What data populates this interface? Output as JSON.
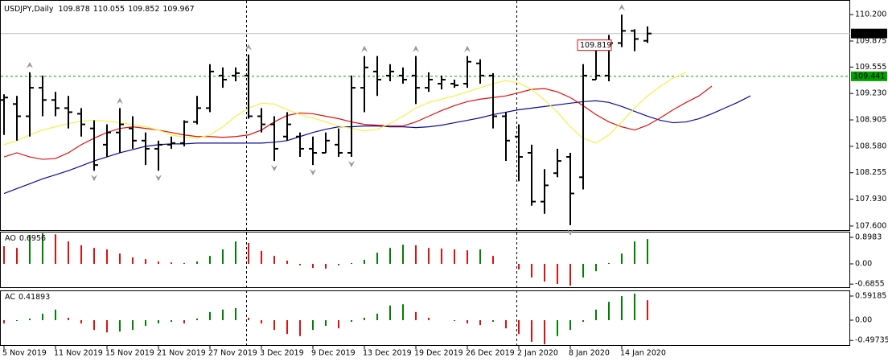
{
  "chart_data": {
    "type": "ohlc",
    "title": "USDJPY,Daily",
    "categories": [
      "5 Nov 2019",
      null,
      null,
      null,
      "11 Nov 2019",
      null,
      null,
      null,
      "15 Nov 2019",
      null,
      null,
      null,
      "21 Nov 2019",
      null,
      null,
      null,
      "27 Nov 2019",
      null,
      null,
      null,
      "3 Dec 2019",
      null,
      null,
      null,
      "9 Dec 2019",
      null,
      null,
      null,
      "13 Dec 2019",
      null,
      null,
      null,
      "19 Dec 2019",
      null,
      null,
      null,
      "26 Dec 2019",
      null,
      null,
      null,
      "2 Jan 2020",
      null,
      null,
      null,
      "8 Jan 2020",
      null,
      null,
      null,
      "14 Jan 2020",
      null,
      null,
      null,
      null,
      null,
      null,
      null,
      null,
      null,
      null
    ],
    "bars": [
      [
        109.15,
        109.22,
        108.72,
        109.18
      ],
      [
        109.1,
        109.2,
        108.65,
        108.95
      ],
      [
        108.95,
        109.49,
        108.7,
        109.3
      ],
      [
        109.3,
        109.45,
        108.95,
        109.15
      ],
      [
        109.15,
        109.25,
        108.95,
        109.05
      ],
      [
        109.05,
        109.2,
        108.8,
        109.0
      ],
      [
        108.98,
        109.05,
        108.7,
        108.85
      ],
      [
        108.8,
        108.9,
        108.28,
        108.35
      ],
      [
        108.6,
        108.85,
        108.45,
        108.75
      ],
      [
        108.75,
        109.05,
        108.5,
        108.85
      ],
      [
        108.8,
        108.95,
        108.55,
        108.65
      ],
      [
        108.65,
        108.75,
        108.35,
        108.55
      ],
      [
        108.55,
        108.65,
        108.28,
        108.6
      ],
      [
        108.6,
        108.7,
        108.55,
        108.62
      ],
      [
        108.62,
        108.9,
        108.58,
        108.88
      ],
      [
        108.88,
        109.2,
        108.85,
        109.05
      ],
      [
        109.05,
        109.59,
        109.0,
        109.5
      ],
      [
        109.45,
        109.55,
        109.3,
        109.4
      ],
      [
        109.45,
        109.55,
        109.38,
        109.48
      ],
      [
        109.45,
        109.71,
        108.92,
        108.95
      ],
      [
        108.95,
        109.05,
        108.75,
        108.85
      ],
      [
        108.85,
        108.95,
        108.4,
        108.55
      ],
      [
        108.7,
        109.0,
        108.65,
        108.85
      ],
      [
        108.7,
        108.75,
        108.45,
        108.55
      ],
      [
        108.55,
        108.7,
        108.35,
        108.5
      ],
      [
        108.5,
        108.75,
        108.5,
        108.65
      ],
      [
        108.6,
        108.8,
        108.45,
        108.5
      ],
      [
        108.5,
        109.45,
        108.45,
        109.3
      ],
      [
        109.3,
        109.69,
        109.0,
        109.55
      ],
      [
        109.5,
        109.69,
        109.2,
        109.4
      ],
      [
        109.45,
        109.59,
        109.38,
        109.5
      ],
      [
        109.45,
        109.55,
        109.35,
        109.4
      ],
      [
        109.45,
        109.69,
        109.1,
        109.3
      ],
      [
        109.3,
        109.49,
        109.25,
        109.4
      ],
      [
        109.35,
        109.45,
        109.28,
        109.4
      ],
      [
        109.35,
        109.4,
        109.3,
        109.33
      ],
      [
        109.35,
        109.69,
        109.3,
        109.62
      ],
      [
        109.6,
        109.65,
        109.35,
        109.45
      ],
      [
        109.45,
        109.48,
        108.8,
        108.95
      ],
      [
        108.95,
        109.0,
        108.4,
        108.65
      ],
      [
        108.7,
        108.85,
        108.15,
        108.45
      ],
      [
        108.5,
        108.6,
        107.85,
        107.9
      ],
      [
        107.9,
        108.3,
        107.75,
        108.1
      ],
      [
        108.25,
        108.55,
        108.2,
        108.4
      ],
      [
        108.45,
        108.5,
        107.61,
        108.0
      ],
      [
        108.2,
        109.59,
        108.05,
        109.45
      ],
      [
        109.4,
        109.85,
        109.4,
        109.45
      ],
      [
        109.45,
        109.95,
        109.38,
        109.85
      ],
      [
        109.85,
        110.2,
        109.8,
        110.0
      ],
      [
        110.0,
        110.02,
        109.75,
        109.9
      ],
      [
        109.878,
        110.055,
        109.852,
        109.967
      ],
      null,
      null,
      null,
      null,
      null,
      null,
      null,
      null
    ],
    "bar_color": "#000000",
    "ylim": [
      107.55,
      110.33
    ],
    "yticks": [
      {
        "value": 110.2,
        "label": "110.200"
      },
      109.875,
      109.555,
      {
        "value": 109.23,
        "label": "109.230"
      },
      108.905,
      {
        "value": 108.58,
        "label": "108.580"
      },
      108.255,
      {
        "value": 107.93,
        "label": "107.930"
      },
      {
        "value": 107.6,
        "label": "107.600"
      }
    ],
    "series": [
      {
        "color": "#0a0a9c",
        "values": [
          108.0,
          108.06,
          108.12,
          108.18,
          108.23,
          108.28,
          108.34,
          108.4,
          108.45,
          108.5,
          108.54,
          108.58,
          108.6,
          108.61,
          108.61,
          108.62,
          108.62,
          108.62,
          108.62,
          108.62,
          108.62,
          108.63,
          108.65,
          108.7,
          108.75,
          108.79,
          108.82,
          108.82,
          108.83,
          108.83,
          108.82,
          108.82,
          108.81,
          108.82,
          108.84,
          108.87,
          108.9,
          108.93,
          108.97,
          109.0,
          109.03,
          109.05,
          109.07,
          109.09,
          109.11,
          109.13,
          109.14,
          109.12,
          109.07,
          109.01,
          108.95,
          108.9,
          108.87,
          108.88,
          108.92,
          108.98,
          109.05,
          109.12,
          109.2
        ]
      },
      {
        "color": "#e01010",
        "values": [
          108.45,
          108.5,
          108.45,
          108.42,
          108.43,
          108.5,
          108.6,
          108.68,
          108.75,
          108.8,
          108.82,
          108.8,
          108.78,
          108.75,
          108.72,
          108.7,
          108.7,
          108.69,
          108.7,
          108.72,
          108.78,
          108.88,
          108.96,
          108.99,
          108.98,
          108.95,
          108.92,
          108.88,
          108.85,
          108.84,
          108.83,
          108.83,
          108.88,
          108.95,
          109.02,
          109.08,
          109.13,
          109.16,
          109.18,
          109.2,
          109.24,
          109.28,
          109.29,
          109.25,
          109.18,
          109.08,
          108.97,
          108.88,
          108.82,
          108.78,
          108.84,
          108.93,
          109.03,
          109.12,
          109.2,
          109.32,
          null,
          null,
          null
        ]
      },
      {
        "color": "#f2f24a",
        "values": [
          108.6,
          108.65,
          108.72,
          108.78,
          108.82,
          108.86,
          108.89,
          108.9,
          108.89,
          108.87,
          108.85,
          108.82,
          108.78,
          108.72,
          108.69,
          108.68,
          108.72,
          108.82,
          108.95,
          109.05,
          109.11,
          109.1,
          109.03,
          108.97,
          108.93,
          108.88,
          108.83,
          108.8,
          108.77,
          108.79,
          108.86,
          108.95,
          109.05,
          109.12,
          109.16,
          109.2,
          109.25,
          109.3,
          109.35,
          109.39,
          109.36,
          109.28,
          109.15,
          109.0,
          108.82,
          108.68,
          108.62,
          108.72,
          108.88,
          109.05,
          109.2,
          109.32,
          109.42,
          109.49,
          null,
          null,
          null,
          null,
          null
        ]
      }
    ],
    "fractals_up": [
      null,
      null,
      109.49,
      null,
      null,
      null,
      null,
      null,
      null,
      109.05,
      null,
      null,
      null,
      null,
      null,
      null,
      null,
      null,
      null,
      109.71,
      null,
      null,
      null,
      null,
      null,
      null,
      null,
      null,
      109.69,
      null,
      null,
      null,
      109.69,
      null,
      null,
      null,
      109.69,
      null,
      null,
      null,
      null,
      null,
      null,
      null,
      null,
      null,
      null,
      null,
      110.2,
      null,
      null,
      null,
      null,
      null,
      null,
      null,
      null,
      null,
      null
    ],
    "fractals_down": [
      null,
      null,
      null,
      null,
      null,
      null,
      null,
      108.28,
      null,
      null,
      null,
      null,
      108.28,
      null,
      null,
      null,
      null,
      null,
      null,
      null,
      null,
      108.4,
      null,
      null,
      108.35,
      null,
      null,
      108.45,
      null,
      null,
      null,
      null,
      null,
      null,
      null,
      null,
      null,
      null,
      null,
      null,
      null,
      null,
      null,
      null,
      107.61,
      null,
      null,
      null,
      null,
      null,
      null,
      null,
      null,
      null,
      null,
      null,
      null,
      null,
      null
    ],
    "fractal_color": "#9a9a9a",
    "bid_color": "#c0c0c0",
    "hline": {
      "value": 109.441,
      "color": "#00a000"
    },
    "price_label": {
      "value": 109.819,
      "color": "#e01010"
    },
    "panes": [
      {
        "name": "AO",
        "current": 0.6956,
        "up_color": "#008000",
        "down_color": "#e01010",
        "ylim": [
          -0.79,
          1.063
        ],
        "yticks": [
          0.8983,
          {
            "value": 0,
            "label": "0.00"
          },
          -0.6855
        ],
        "values": [
          0.6,
          0.54,
          0.98,
          1.04,
          1.0,
          0.76,
          0.63,
          0.54,
          0.49,
          0.35,
          0.22,
          0.16,
          0.08,
          0.05,
          0.03,
          0.08,
          0.27,
          0.49,
          0.76,
          0.71,
          0.44,
          0.27,
          0.11,
          -0.05,
          -0.14,
          -0.16,
          -0.05,
          0.03,
          0.14,
          0.38,
          0.54,
          0.65,
          0.63,
          0.54,
          0.52,
          0.49,
          0.46,
          0.49,
          0.27,
          0.0,
          -0.19,
          -0.46,
          -0.6,
          -0.68,
          -0.74,
          -0.46,
          -0.25,
          0.03,
          0.35,
          0.76,
          0.84,
          null,
          null,
          null,
          null,
          null,
          null,
          null,
          null
        ]
      },
      {
        "name": "AC",
        "current": 0.41893,
        "up_color": "#008000",
        "down_color": "#e01010",
        "ylim": [
          -0.631,
          0.71
        ],
        "yticks": [
          0.59185,
          {
            "value": 0,
            "label": "0.00"
          },
          -0.49735
        ],
        "values": [
          -0.08,
          -0.02,
          0.04,
          0.16,
          0.26,
          0.06,
          -0.08,
          -0.24,
          -0.3,
          -0.28,
          -0.24,
          -0.14,
          -0.08,
          -0.04,
          -0.08,
          0.04,
          0.2,
          0.26,
          0.3,
          0.06,
          -0.08,
          -0.24,
          -0.34,
          -0.39,
          -0.24,
          -0.14,
          -0.2,
          -0.04,
          0.06,
          0.16,
          0.36,
          0.39,
          0.2,
          0.06,
          0.0,
          -0.02,
          -0.08,
          -0.12,
          -0.04,
          -0.2,
          -0.34,
          -0.53,
          -0.59,
          -0.39,
          -0.24,
          -0.04,
          0.26,
          0.45,
          0.59,
          0.65,
          0.49,
          null,
          null,
          null,
          null,
          null,
          null,
          null,
          null
        ]
      }
    ]
  }
}
